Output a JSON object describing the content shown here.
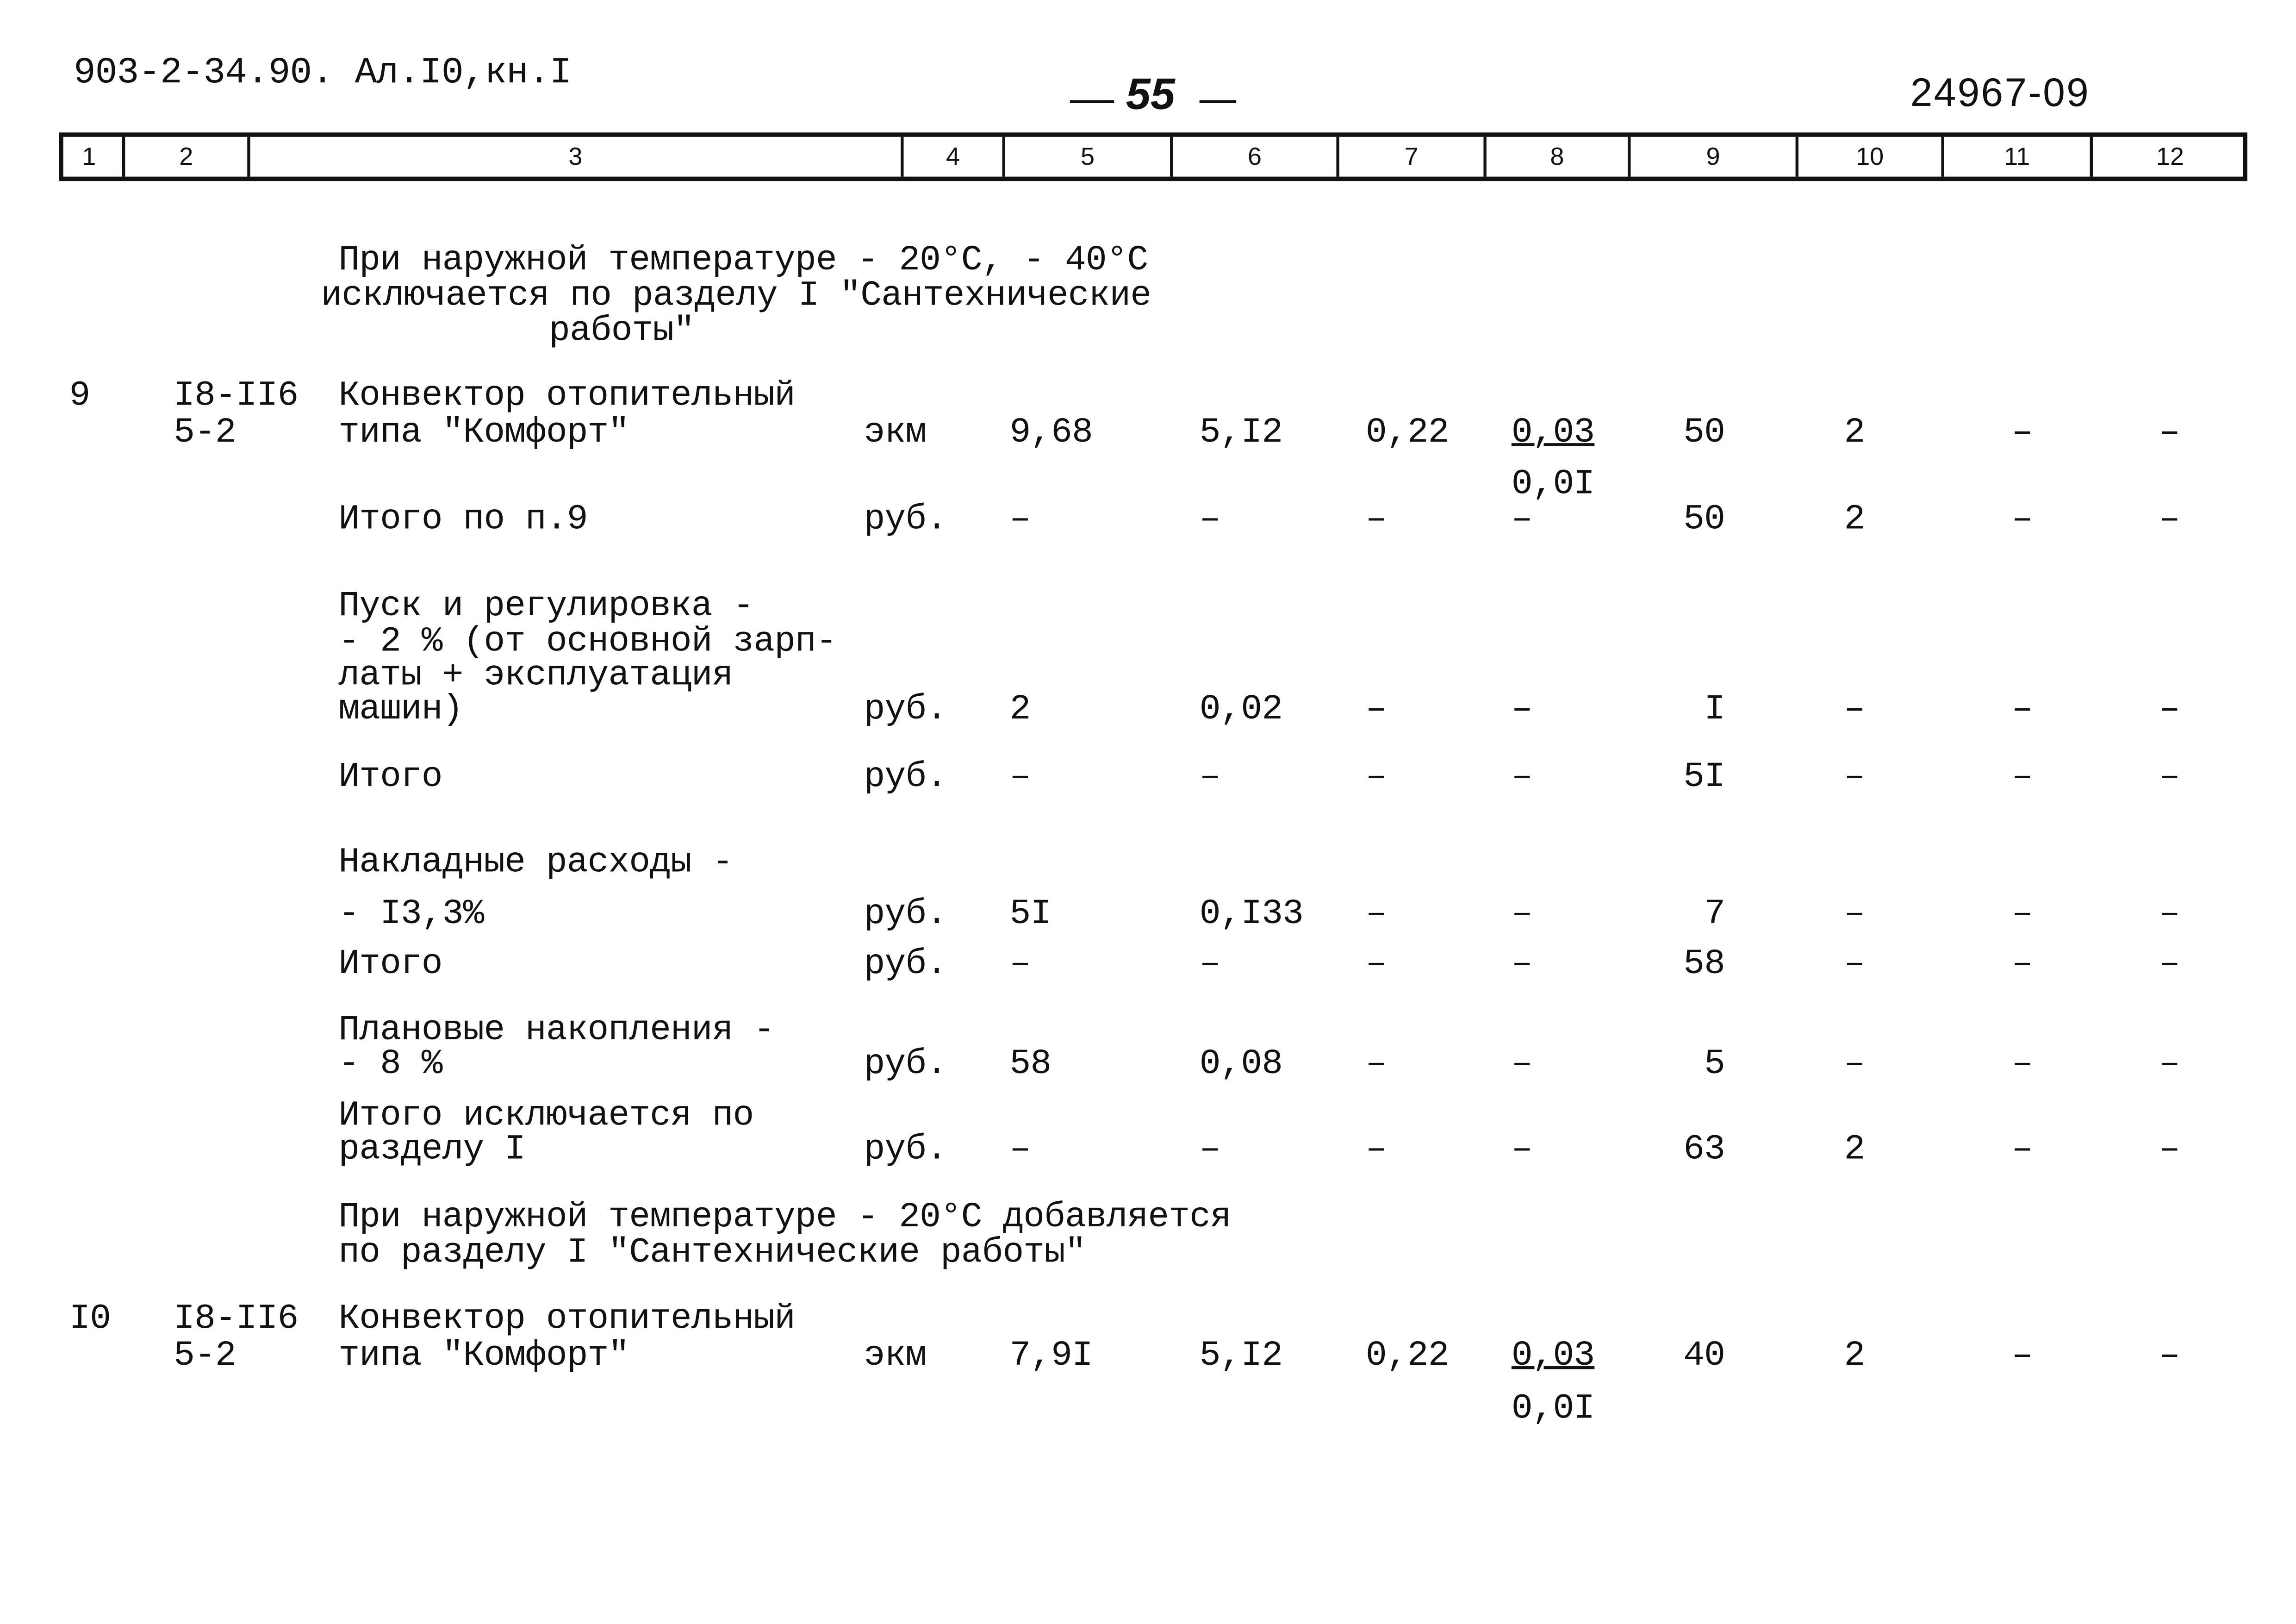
{
  "header": {
    "doc_code": "903-2-34.90. Ал.I0,кн.I",
    "page_number": "55",
    "archive_number": "24967-09"
  },
  "column_headers": [
    "1",
    "2",
    "3",
    "4",
    "5",
    "6",
    "7",
    "8",
    "9",
    "10",
    "11",
    "12"
  ],
  "notes": {
    "exclude_intro": [
      "При наружной температуре - 20°C, - 40°C",
      "исключается по разделу I \"Сантехнические",
      "работы\""
    ],
    "add_intro": [
      "При наружной температуре - 20°C добавляется",
      "по разделу I \"Сантехнические работы\""
    ]
  },
  "rows": [
    {
      "num": "9",
      "code": [
        "I8-II6",
        "5-2"
      ],
      "name": [
        "Конвектор отопительный",
        "типа \"Комфорт\""
      ],
      "unit": "экм",
      "c5": "9,68",
      "c6": "5,I2",
      "c7": "0,22",
      "c8": "0,03",
      "c8_sub": "0,0I",
      "c9": "50",
      "c10": "2",
      "c11": "–",
      "c12": "–"
    },
    {
      "name": [
        "Итого по п.9"
      ],
      "unit": "руб.",
      "c5": "–",
      "c6": "–",
      "c7": "–",
      "c8": "–",
      "c9": "50",
      "c10": "2",
      "c11": "–",
      "c12": "–"
    },
    {
      "name": [
        "Пуск и регулировка -",
        "- 2 % (от основной зарп-",
        "латы + эксплуатация",
        "машин)"
      ],
      "unit": "руб.",
      "c5": "2",
      "c6": "0,02",
      "c7": "–",
      "c8": "–",
      "c9": "I",
      "c10": "–",
      "c11": "–",
      "c12": "–"
    },
    {
      "name": [
        "Итого"
      ],
      "unit": "руб.",
      "c5": "–",
      "c6": "–",
      "c7": "–",
      "c8": "–",
      "c9": "5I",
      "c10": "–",
      "c11": "–",
      "c12": "–"
    },
    {
      "name": [
        "Накладные расходы -",
        "- I3,3%"
      ],
      "unit": "руб.",
      "c5": "5I",
      "c6": "0,I33",
      "c7": "–",
      "c8": "–",
      "c9": "7",
      "c10": "–",
      "c11": "–",
      "c12": "–"
    },
    {
      "name": [
        "Итого"
      ],
      "unit": "руб.",
      "c5": "–",
      "c6": "–",
      "c7": "–",
      "c8": "–",
      "c9": "58",
      "c10": "–",
      "c11": "–",
      "c12": "–"
    },
    {
      "name": [
        "Плановые накопления -",
        "- 8 %"
      ],
      "unit": "руб.",
      "c5": "58",
      "c6": "0,08",
      "c7": "–",
      "c8": "–",
      "c9": "5",
      "c10": "–",
      "c11": "–",
      "c12": "–"
    },
    {
      "name": [
        "Итого исключается по",
        "разделу I"
      ],
      "unit": "руб.",
      "c5": "–",
      "c6": "–",
      "c7": "–",
      "c8": "–",
      "c9": "63",
      "c10": "2",
      "c11": "–",
      "c12": "–"
    },
    {
      "num": "I0",
      "code": [
        "I8-II6",
        "5-2"
      ],
      "name": [
        "Конвектор отопительный",
        "типа \"Комфорт\""
      ],
      "unit": "экм",
      "c5": "7,9I",
      "c6": "5,I2",
      "c7": "0,22",
      "c8": "0,03",
      "c8_sub": "0,0I",
      "c9": "40",
      "c10": "2",
      "c11": "–",
      "c12": "–"
    }
  ]
}
